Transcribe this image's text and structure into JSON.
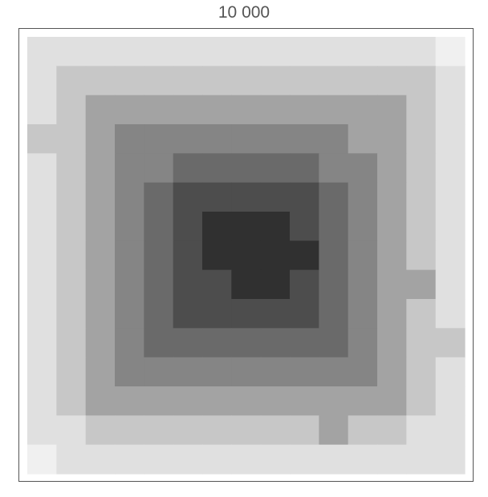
{
  "chart_data": {
    "type": "heatmap",
    "title": "10 000",
    "rows": 15,
    "cols": 15,
    "colorscale": {
      "0": "#f0f0f0",
      "1": "#e0e0e0",
      "2": "#c7c7c7",
      "3": "#a3a3a3",
      "4": "#858585",
      "5": "#6a6a6a",
      "6": "#4d4d4d",
      "7": "#303030"
    },
    "values": [
      [
        1,
        1,
        1,
        1,
        1,
        1,
        1,
        1,
        1,
        1,
        1,
        1,
        1,
        1,
        0
      ],
      [
        1,
        2,
        2,
        2,
        2,
        2,
        2,
        2,
        2,
        2,
        2,
        2,
        2,
        2,
        1
      ],
      [
        1,
        2,
        3,
        3,
        3,
        3,
        3,
        3,
        3,
        3,
        3,
        3,
        3,
        2,
        1
      ],
      [
        2,
        2,
        3,
        4,
        4,
        4,
        4,
        4,
        4,
        4,
        4,
        3,
        3,
        2,
        1
      ],
      [
        1,
        2,
        3,
        4,
        4,
        5,
        5,
        5,
        5,
        5,
        4,
        4,
        3,
        2,
        1
      ],
      [
        1,
        2,
        3,
        4,
        5,
        6,
        6,
        6,
        6,
        6,
        5,
        4,
        3,
        2,
        1
      ],
      [
        1,
        2,
        3,
        4,
        5,
        6,
        7,
        7,
        7,
        6,
        5,
        4,
        3,
        2,
        1
      ],
      [
        1,
        2,
        3,
        4,
        5,
        6,
        7,
        7,
        7,
        7,
        5,
        4,
        3,
        2,
        1
      ],
      [
        1,
        2,
        3,
        4,
        5,
        6,
        6,
        7,
        7,
        6,
        5,
        4,
        3,
        3,
        1
      ],
      [
        1,
        2,
        3,
        4,
        5,
        6,
        6,
        6,
        6,
        6,
        5,
        4,
        3,
        2,
        1
      ],
      [
        1,
        2,
        3,
        4,
        5,
        5,
        5,
        5,
        5,
        5,
        5,
        4,
        3,
        2,
        2
      ],
      [
        1,
        2,
        3,
        4,
        4,
        4,
        4,
        4,
        4,
        4,
        4,
        4,
        3,
        2,
        1
      ],
      [
        1,
        2,
        3,
        3,
        3,
        3,
        3,
        3,
        3,
        3,
        3,
        3,
        3,
        2,
        1
      ],
      [
        1,
        1,
        2,
        2,
        2,
        2,
        2,
        2,
        2,
        2,
        3,
        2,
        2,
        1,
        1
      ],
      [
        0,
        1,
        1,
        1,
        1,
        1,
        1,
        1,
        1,
        1,
        1,
        1,
        1,
        1,
        1
      ]
    ]
  }
}
